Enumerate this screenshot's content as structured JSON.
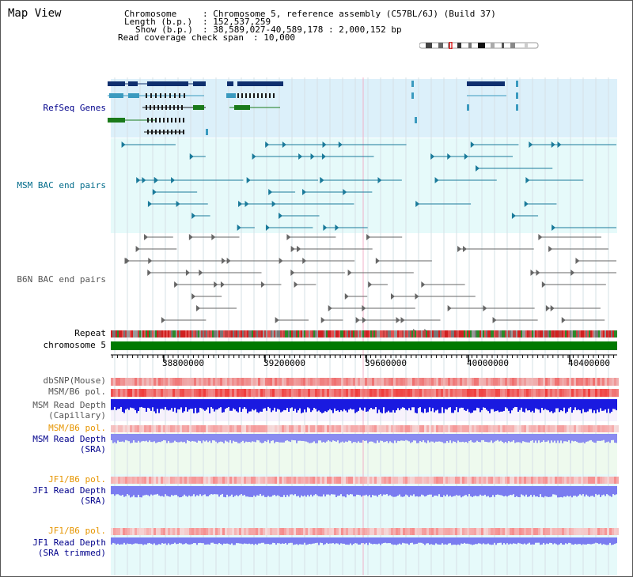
{
  "window": {
    "title": "Map View"
  },
  "header": {
    "chromosome_key": "Chromosome",
    "chromosome_value": ": Chromosome 5, reference assembly (C57BL/6J) (Build 37)",
    "length_key": "Length (b.p.)",
    "length_value": ": 152,537,259",
    "show_key": "Show (b.p.)",
    "show_value": ": 38,589,027-40,589,178 : 2,000,152 bp",
    "coverage_key": "Read coverage check span",
    "coverage_value": ": 10,000"
  },
  "tracks": {
    "refseq": "RefSeq Genes",
    "msm_bac": "MSM BAC end pairs",
    "b6n_bac": "B6N BAC end pairs",
    "repeat": "Repeat",
    "chromosome": "chromosome 5",
    "dbsnp": "dbSNP(Mouse)",
    "msm_b6_pol_1": "MSM/B6 pol.",
    "msm_depth_cap_1": "MSM Read Depth",
    "msm_depth_cap_2": "(Capillary)",
    "msm_b6_pol_2": "MSM/B6 pol.",
    "msm_depth_sra_1": "MSM Read Depth",
    "msm_depth_sra_2": "(SRA)",
    "jf1_b6_pol_1": "JF1/B6 pol.",
    "jf1_depth_sra_1": "JF1 Read Depth",
    "jf1_depth_sra_2": "(SRA)",
    "jf1_b6_pol_2": "JF1/B6 pol.",
    "jf1_depth_trim_1": "JF1 Read Depth",
    "jf1_depth_trim_2": "(SRA trimmed)"
  },
  "axis": {
    "ticks": [
      "38800000",
      "39200000",
      "39600000",
      "40000000",
      "40400000"
    ]
  },
  "colors": {
    "refseq_bg": "#dcf0fa",
    "msm_bg": "#e6fafa",
    "label_blue": "#00008b",
    "label_teal": "#006b8a",
    "label_gray": "#555555",
    "label_orange": "#e69500",
    "chromosome_bar": "#007a00",
    "depth_blue": "#2020e0",
    "depth_light": "#8a8cf0",
    "pol_red": "#f04040"
  }
}
